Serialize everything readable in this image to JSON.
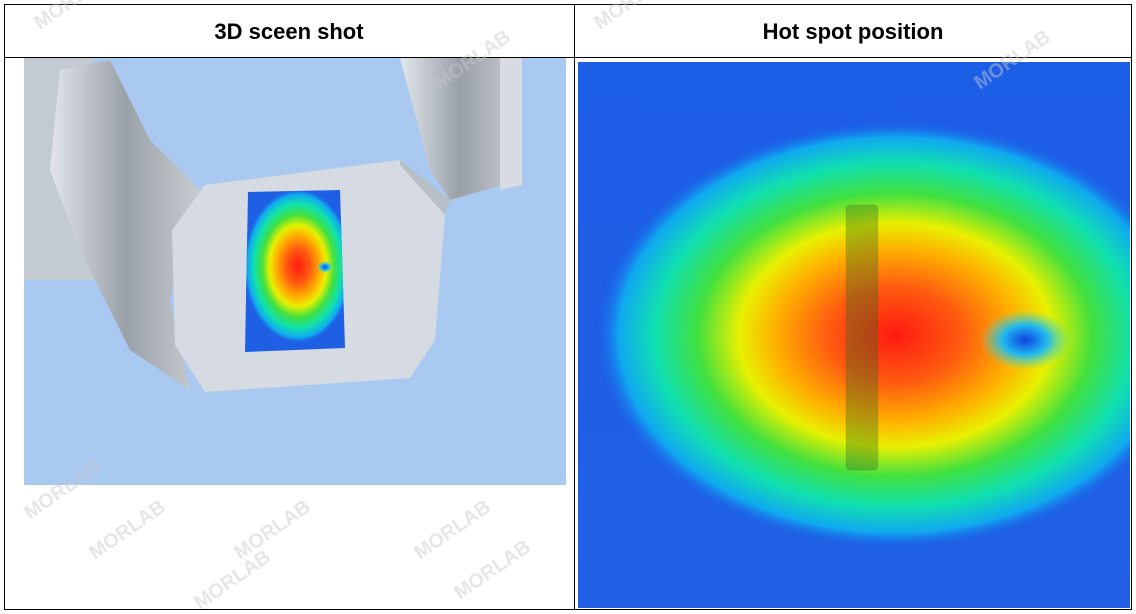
{
  "table": {
    "headers": [
      "3D sceen shot",
      "Hot spot position"
    ]
  },
  "watermark": "MORLAB"
}
